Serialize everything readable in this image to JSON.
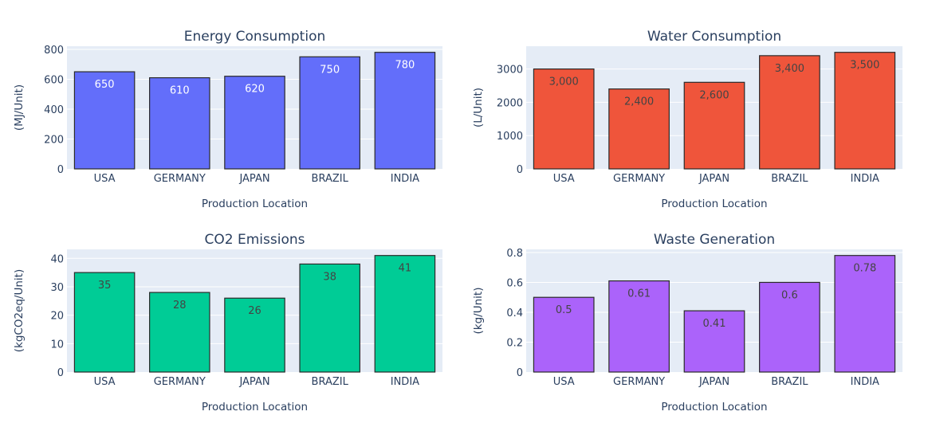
{
  "chart_data": [
    {
      "type": "bar",
      "title": "Energy Consumption",
      "xlabel": "Production Location",
      "ylabel": "(MJ/Unit)",
      "categories": [
        "USA",
        "GERMANY",
        "JAPAN",
        "BRAZIL",
        "INDIA"
      ],
      "values": [
        650,
        610,
        620,
        750,
        780
      ],
      "value_labels": [
        "650",
        "610",
        "620",
        "750",
        "780"
      ],
      "ylim": [
        0,
        821
      ],
      "yticks": [
        0,
        200,
        400,
        600,
        800
      ],
      "ytick_labels": [
        "0",
        "200",
        "400",
        "600",
        "800"
      ],
      "color": "#636efa",
      "label_color": "#ffffff",
      "grid": true
    },
    {
      "type": "bar",
      "title": "Water Consumption",
      "xlabel": "Production Location",
      "ylabel": "(L/Unit)",
      "categories": [
        "USA",
        "GERMANY",
        "JAPAN",
        "BRAZIL",
        "INDIA"
      ],
      "values": [
        3000,
        2400,
        2600,
        3400,
        3500
      ],
      "value_labels": [
        "3,000",
        "2,400",
        "2,600",
        "3,400",
        "3,500"
      ],
      "ylim": [
        0,
        3684
      ],
      "yticks": [
        0,
        1000,
        2000,
        3000
      ],
      "ytick_labels": [
        "0",
        "1000",
        "2000",
        "3000"
      ],
      "color": "#ef553b",
      "label_color": "#444444",
      "grid": true
    },
    {
      "type": "bar",
      "title": "CO2 Emissions",
      "xlabel": "Production Location",
      "ylabel": "(kgCO2eq/Unit)",
      "categories": [
        "USA",
        "GERMANY",
        "JAPAN",
        "BRAZIL",
        "INDIA"
      ],
      "values": [
        35,
        28,
        26,
        38,
        41
      ],
      "value_labels": [
        "35",
        "28",
        "26",
        "38",
        "41"
      ],
      "ylim": [
        0,
        43.16
      ],
      "yticks": [
        0,
        10,
        20,
        30,
        40
      ],
      "ytick_labels": [
        "0",
        "10",
        "20",
        "30",
        "40"
      ],
      "color": "#00cc96",
      "label_color": "#444444",
      "grid": true
    },
    {
      "type": "bar",
      "title": "Waste Generation",
      "xlabel": "Production Location",
      "ylabel": "(kg/Unit)",
      "categories": [
        "USA",
        "GERMANY",
        "JAPAN",
        "BRAZIL",
        "INDIA"
      ],
      "values": [
        0.5,
        0.61,
        0.41,
        0.6,
        0.78
      ],
      "value_labels": [
        "0.5",
        "0.61",
        "0.41",
        "0.6",
        "0.78"
      ],
      "ylim": [
        0,
        0.821
      ],
      "yticks": [
        0,
        0.2,
        0.4,
        0.6,
        0.8
      ],
      "ytick_labels": [
        "0",
        "0.2",
        "0.4",
        "0.6",
        "0.8"
      ],
      "color": "#ab63fa",
      "label_color": "#444444",
      "grid": true
    }
  ],
  "style": {
    "plot_bg": "#e5ecf6",
    "grid_color": "#ffffff",
    "text_color": "#2a3f5f",
    "bar_outline": "#2a2a2a"
  }
}
